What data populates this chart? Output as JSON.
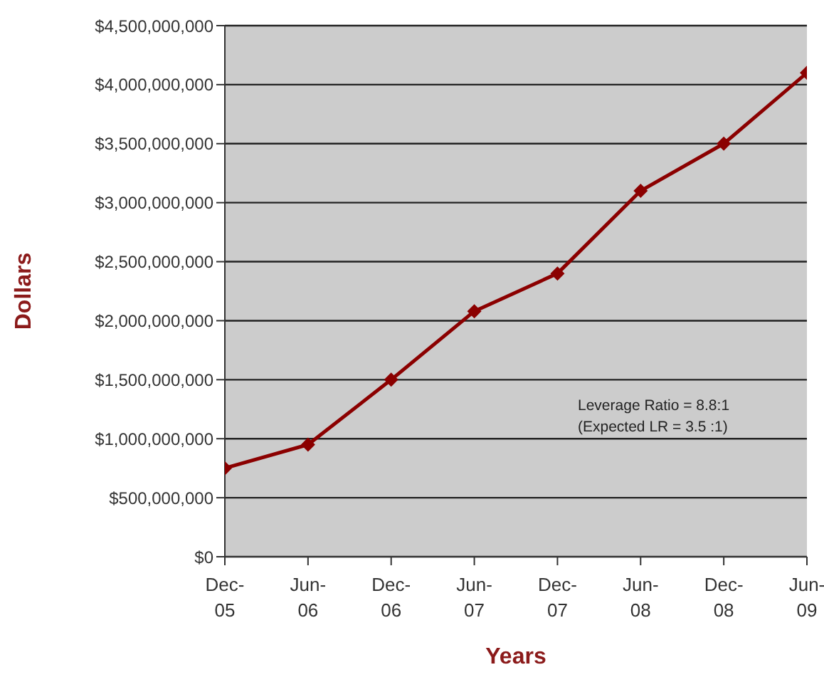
{
  "chart_data": {
    "type": "line",
    "xlabel": "Years",
    "ylabel": "Dollars",
    "categories": [
      "Dec-05",
      "Jun-06",
      "Dec-06",
      "Jun-07",
      "Dec-07",
      "Jun-08",
      "Dec-08",
      "Jun-09"
    ],
    "series": [
      {
        "color": "#8b0000",
        "values": [
          750000000,
          950000000,
          1500000000,
          2080000000,
          2400000000,
          3100000000,
          3500000000,
          4100000000
        ]
      }
    ],
    "ylim": [
      0,
      4500000000
    ],
    "yticks": [
      {
        "value": 0,
        "label": "$0"
      },
      {
        "value": 500000000,
        "label": "$500,000,000"
      },
      {
        "value": 1000000000,
        "label": "$1,000,000,000"
      },
      {
        "value": 1500000000,
        "label": "$1,500,000,000"
      },
      {
        "value": 2000000000,
        "label": "$2,000,000,000"
      },
      {
        "value": 2500000000,
        "label": "$2,500,000,000"
      },
      {
        "value": 3000000000,
        "label": "$3,000,000,000"
      },
      {
        "value": 3500000000,
        "label": "$3,500,000,000"
      },
      {
        "value": 4000000000,
        "label": "$4,000,000,000"
      },
      {
        "value": 4500000000,
        "label": "$4,500,000,000"
      }
    ],
    "grid": "y",
    "marker": "diamond",
    "legend": false,
    "annotations": [
      "Leverage Ratio = 8.8:1",
      "(Expected LR = 3.5 :1)"
    ]
  }
}
